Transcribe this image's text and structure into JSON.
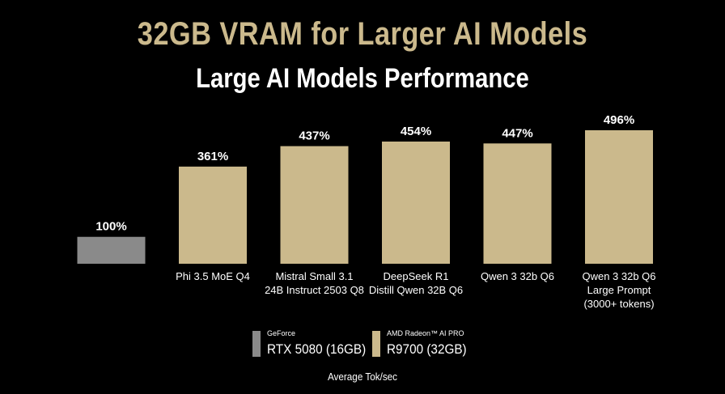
{
  "header": {
    "title": "32GB VRAM for Larger AI Models",
    "subtitle": "Large AI Models Performance"
  },
  "chart_data": {
    "type": "bar",
    "title": "Large AI Models Performance",
    "categories": [
      "",
      "Phi 3.5 MoE Q4",
      "Mistral Small 3.1\n24B Instruct 2503 Q8",
      "DeepSeek R1\nDistill Qwen 32B Q6",
      "Qwen 3 32b Q6",
      "Qwen 3 32b Q6\nLarge Prompt\n(3000+ tokens)"
    ],
    "values": [
      100,
      361,
      437,
      454,
      447,
      496
    ],
    "labels": [
      "100%",
      "361%",
      "437%",
      "454%",
      "447%",
      "496%"
    ],
    "bar_colors": [
      "#8a8a8a",
      "#cbb98c",
      "#cbb98c",
      "#cbb98c",
      "#cbb98c",
      "#cbb98c"
    ],
    "ylim": [
      0,
      520
    ],
    "grid": false,
    "legend_position": "bottom-center",
    "xlabel": "Average Tok/sec"
  },
  "legend": [
    {
      "brand": "GeForce",
      "model": "RTX 5080 (16GB)",
      "color": "#8a8a8a"
    },
    {
      "brand": "AMD Radeon™ AI PRO",
      "model": "R9700 (32GB)",
      "color": "#cbb98c"
    }
  ],
  "footer": {
    "label": "Average Tok/sec"
  }
}
